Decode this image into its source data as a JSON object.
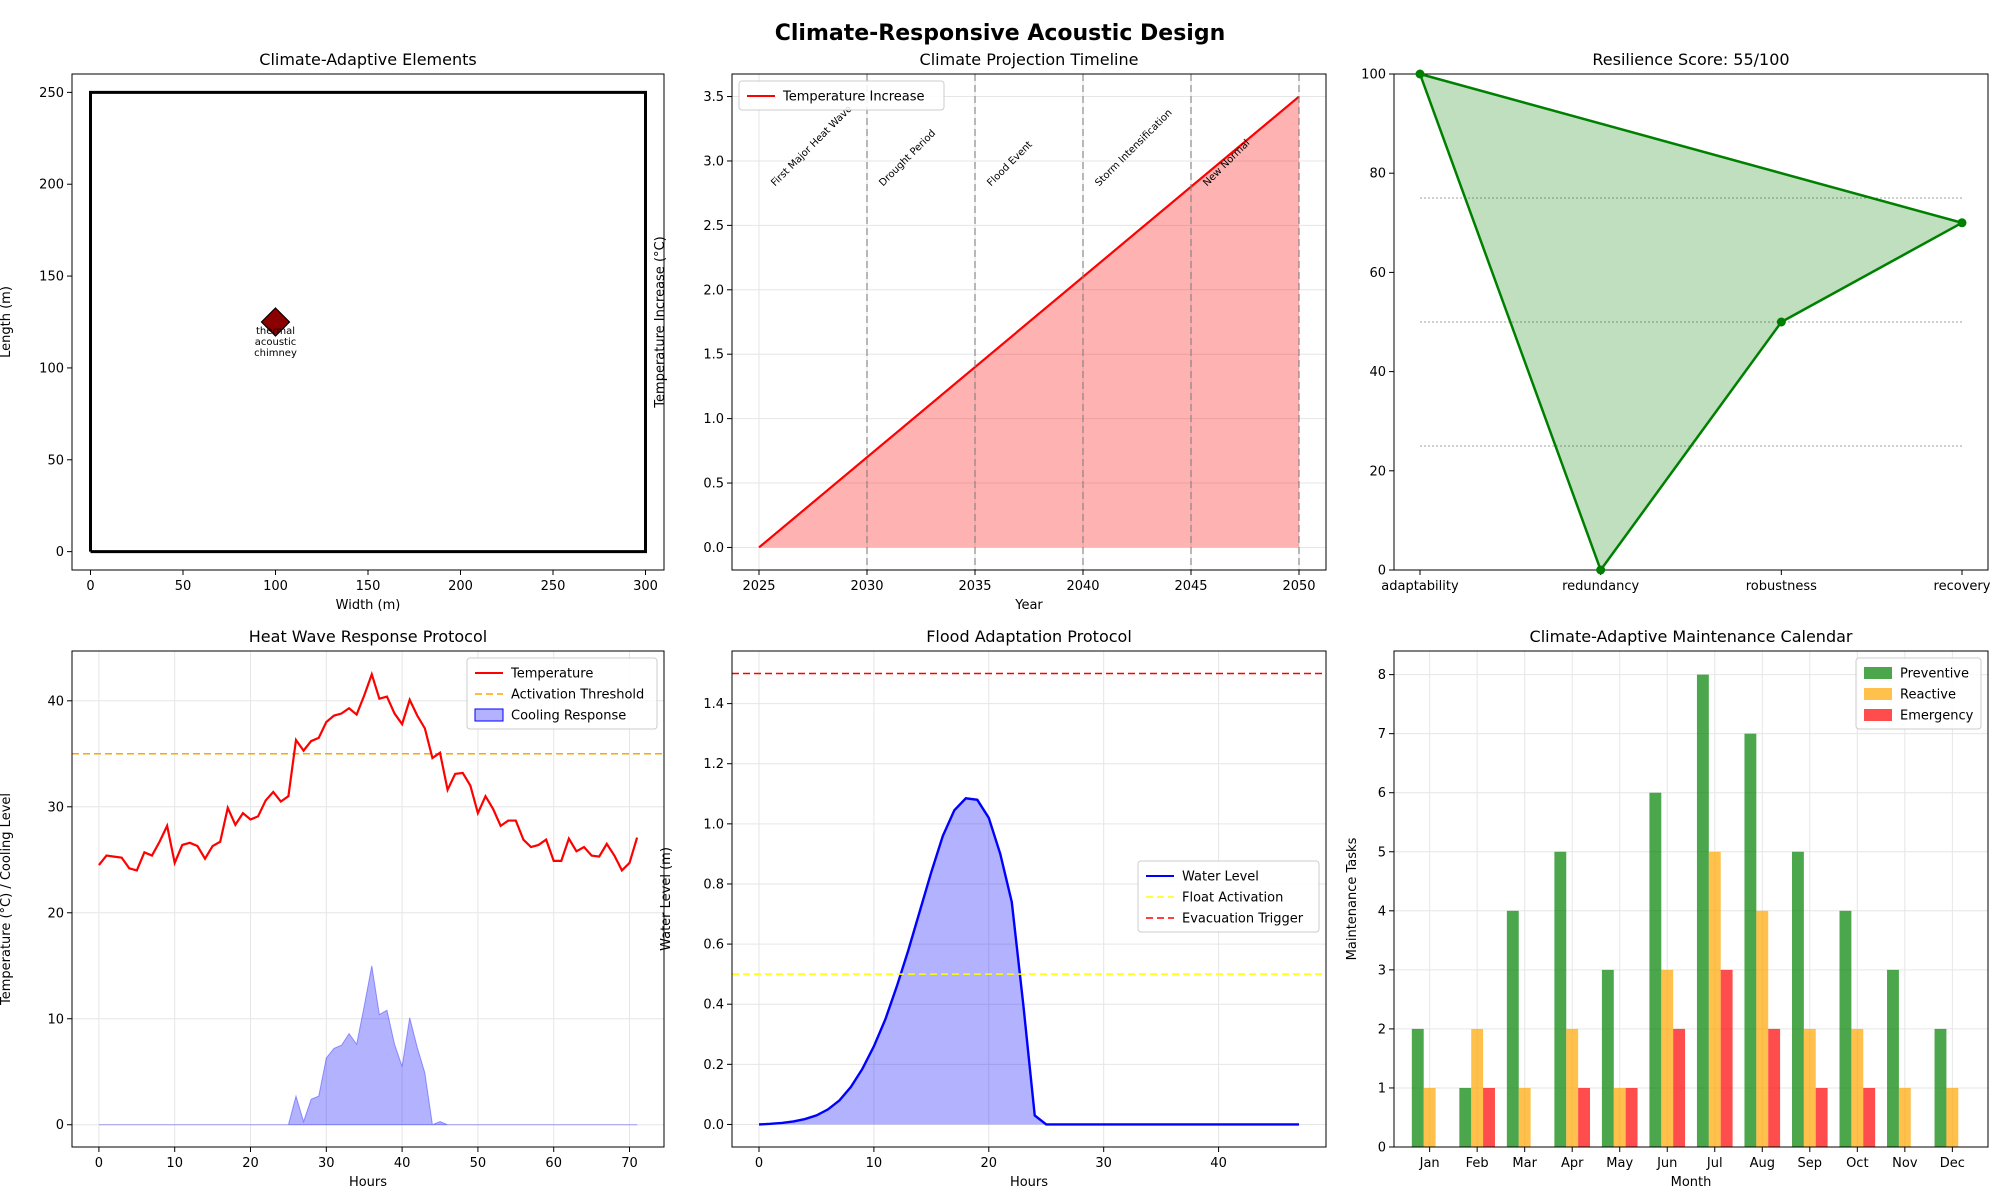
{
  "figure": {
    "title": "Climate-Responsive Acoustic Design"
  },
  "chart_data": [
    {
      "id": "p1",
      "type": "scatter",
      "title": "Climate-Adaptive Elements",
      "xlabel": "Width (m)",
      "ylabel": "Length (m)",
      "xlim": [
        -10,
        310
      ],
      "ylim": [
        -10,
        260
      ],
      "xticks": [
        0,
        50,
        100,
        150,
        200,
        250,
        300
      ],
      "yticks": [
        0,
        50,
        100,
        150,
        200,
        250
      ],
      "outline": [
        [
          0,
          0
        ],
        [
          300,
          0
        ],
        [
          300,
          250
        ],
        [
          0,
          250
        ],
        [
          0,
          0
        ]
      ],
      "points": [
        {
          "x": 100,
          "y": 125,
          "label": [
            "thermal",
            "acoustic",
            "chimney"
          ],
          "marker": "diamond",
          "color": "#8b0000"
        }
      ],
      "grid": false
    },
    {
      "id": "p2",
      "type": "area",
      "title": "Climate Projection Timeline",
      "xlabel": "Year",
      "ylabel": "Temperature Increase (°C)",
      "xlim": [
        2023.75,
        2051.25
      ],
      "ylim": [
        -0.175,
        3.675
      ],
      "xticks": [
        2025,
        2030,
        2035,
        2040,
        2045,
        2050
      ],
      "yticks": [
        0,
        0.5,
        1.0,
        1.5,
        2.0,
        2.5,
        3.0,
        3.5
      ],
      "series": [
        {
          "name": "Temperature Increase",
          "x": [
            2025,
            2050
          ],
          "y": [
            0,
            3.5
          ],
          "color": "#ff0000"
        }
      ],
      "events": [
        {
          "year": 2030,
          "label": "First Major Heat Wave"
        },
        {
          "year": 2035,
          "label": "Drought Period"
        },
        {
          "year": 2040,
          "label": "Flood Event"
        },
        {
          "year": 2045,
          "label": "Storm Intensification"
        },
        {
          "year": 2050,
          "label": "New Normal"
        }
      ],
      "legend": "upper left",
      "grid": true
    },
    {
      "id": "p3",
      "type": "area",
      "title": "Resilience Score: 55/100",
      "categories": [
        "adaptability",
        "redundancy",
        "robustness",
        "recovery"
      ],
      "values": [
        100,
        0,
        50,
        70
      ],
      "ylim": [
        0,
        100
      ],
      "yticks": [
        0,
        20,
        40,
        60,
        80,
        100
      ],
      "reference_lines": [
        25,
        50,
        75
      ],
      "color": "#008000"
    },
    {
      "id": "p4",
      "type": "line",
      "title": "Heat Wave Response Protocol",
      "xlabel": "Hours",
      "ylabel": "Temperature (°C) / Cooling Level",
      "xlim": [
        -3.55,
        74.55
      ],
      "ylim": [
        -2.1,
        44.7
      ],
      "xticks": [
        0,
        10,
        20,
        30,
        40,
        50,
        60,
        70
      ],
      "yticks": [
        0,
        10,
        20,
        30,
        40
      ],
      "threshold": 35,
      "series": [
        {
          "name": "Temperature",
          "color": "#ff0000",
          "y": [
            24.5,
            25.4,
            25.3,
            25.2,
            24.2,
            24.0,
            25.7,
            25.4,
            26.7,
            28.2,
            24.7,
            26.4,
            26.6,
            26.3,
            25.1,
            26.3,
            26.7,
            29.9,
            28.3,
            29.4,
            28.8,
            29.1,
            30.6,
            31.4,
            30.5,
            31.0,
            36.3,
            35.3,
            36.2,
            36.5,
            38.0,
            38.6,
            38.8,
            39.3,
            38.7,
            40.5,
            42.5,
            40.2,
            40.4,
            38.8,
            37.8,
            40.1,
            38.6,
            37.4,
            34.6,
            35.1,
            31.6,
            33.1,
            33.2,
            32.0,
            29.4,
            31.0,
            29.8,
            28.2,
            28.7,
            28.7,
            26.9,
            26.2,
            26.4,
            26.9,
            24.9,
            24.9,
            27.0,
            25.8,
            26.2,
            25.4,
            25.3,
            26.5,
            25.4,
            24.0,
            24.7,
            27.1
          ]
        },
        {
          "name": "Activation Threshold",
          "color": "#ffa500"
        },
        {
          "name": "Cooling Response",
          "color": "#0000ff",
          "y": [
            0,
            0,
            0,
            0,
            0,
            0,
            0,
            0,
            0,
            0,
            0,
            0,
            0,
            0,
            0,
            0,
            0,
            0,
            0,
            0,
            0,
            0,
            0,
            0,
            0,
            0,
            2.7,
            0.3,
            2.4,
            2.7,
            6.3,
            7.2,
            7.5,
            8.6,
            7.6,
            11.2,
            15.0,
            10.4,
            10.8,
            7.6,
            5.5,
            10.1,
            7.3,
            4.9,
            0,
            0.3,
            0,
            0,
            0,
            0,
            0,
            0,
            0,
            0,
            0,
            0,
            0,
            0,
            0,
            0,
            0,
            0,
            0,
            0,
            0,
            0,
            0,
            0,
            0,
            0,
            0,
            0
          ]
        }
      ],
      "legend": "upper right",
      "grid": true
    },
    {
      "id": "p5",
      "type": "area",
      "title": "Flood Adaptation Protocol",
      "xlabel": "Hours",
      "ylabel": "Water Level (m)",
      "xlim": [
        -2.35,
        49.35
      ],
      "ylim": [
        -0.075,
        1.575
      ],
      "xticks": [
        0,
        10,
        20,
        30,
        40
      ],
      "yticks": [
        0.0,
        0.2,
        0.4,
        0.6,
        0.8,
        1.0,
        1.2,
        1.4
      ],
      "float_activation": 0.5,
      "evacuation_trigger": 1.5,
      "series": [
        {
          "name": "Water Level",
          "color": "#0000ff",
          "y": [
            0,
            0.002,
            0.005,
            0.01,
            0.018,
            0.03,
            0.05,
            0.08,
            0.125,
            0.185,
            0.26,
            0.35,
            0.46,
            0.58,
            0.71,
            0.84,
            0.96,
            1.045,
            1.085,
            1.08,
            1.02,
            0.9,
            0.74,
            0.4,
            0.03,
            0,
            0,
            0,
            0,
            0,
            0,
            0,
            0,
            0,
            0,
            0,
            0,
            0,
            0,
            0,
            0,
            0,
            0,
            0,
            0,
            0,
            0,
            0
          ]
        },
        {
          "name": "Float Activation",
          "color": "#ffff00"
        },
        {
          "name": "Evacuation Trigger",
          "color": "#ff0000"
        }
      ],
      "legend": "center right",
      "grid": true
    },
    {
      "id": "p6",
      "type": "bar",
      "title": "Climate-Adaptive Maintenance Calendar",
      "xlabel": "Month",
      "ylabel": "Maintenance Tasks",
      "categories": [
        "Jan",
        "Feb",
        "Mar",
        "Apr",
        "May",
        "Jun",
        "Jul",
        "Aug",
        "Sep",
        "Oct",
        "Nov",
        "Dec"
      ],
      "ylim": [
        0,
        8.4
      ],
      "yticks": [
        0,
        1,
        2,
        3,
        4,
        5,
        6,
        7,
        8
      ],
      "series": [
        {
          "name": "Preventive",
          "color": "#008000",
          "values": [
            2,
            1,
            4,
            5,
            3,
            6,
            8,
            7,
            5,
            4,
            3,
            2
          ]
        },
        {
          "name": "Reactive",
          "color": "#ffa500",
          "values": [
            1,
            2,
            1,
            2,
            1,
            3,
            5,
            4,
            2,
            2,
            1,
            1
          ]
        },
        {
          "name": "Emergency",
          "color": "#ff0000",
          "values": [
            0,
            1,
            0,
            1,
            1,
            2,
            3,
            2,
            1,
            1,
            0,
            0
          ]
        }
      ],
      "legend": "upper right",
      "grid": true
    }
  ]
}
